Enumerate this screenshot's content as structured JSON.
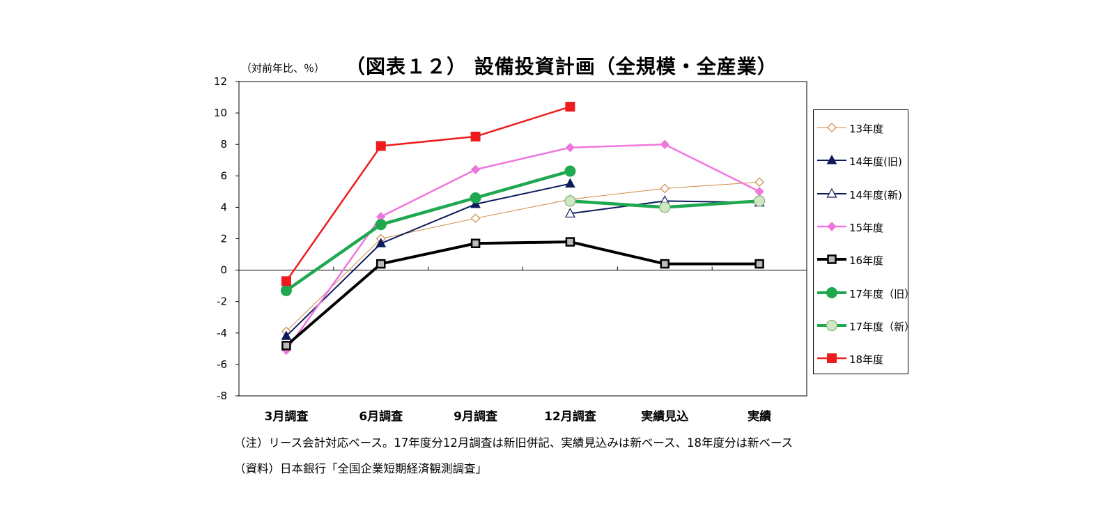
{
  "header": {
    "unit": "（対前年比、％）",
    "title": "（図表１２） 設備投資計画（全規模・全産業）"
  },
  "notes": {
    "note1": "（注）リース会計対応ベース。17年度分12月調査は新旧併記、実績見込みは新ベース、18年度分は新ベース",
    "note2": "（資料）日本銀行「全国企業短期経済観測調査」"
  },
  "chart_data": {
    "type": "line",
    "title": "（図表１２） 設備投資計画（全規模・全産業）",
    "ylabel": "（対前年比、％）",
    "xlabel": "",
    "categories": [
      "3月調査",
      "6月調査",
      "9月調査",
      "12月調査",
      "実績見込",
      "実績"
    ],
    "y_ticks": [
      "12",
      "10",
      "8",
      "6",
      "4",
      "2",
      "0",
      "-2",
      "-4",
      "-6",
      "-8"
    ],
    "ylim": [
      -8,
      12
    ],
    "grid": false,
    "legend_position": "right",
    "series": [
      {
        "name": "13年度",
        "values": [
          -3.9,
          2.0,
          3.3,
          4.5,
          5.2,
          5.6
        ],
        "color": "#cc8844",
        "marker": "diamond-open",
        "width": 1
      },
      {
        "name": "14年度(旧)",
        "values": [
          -4.2,
          1.7,
          4.2,
          5.5,
          null,
          null
        ],
        "color": "#0d1a5c",
        "marker": "triangle-filled",
        "width": 2
      },
      {
        "name": "14年度(新)",
        "values": [
          null,
          null,
          null,
          3.6,
          4.4,
          4.3
        ],
        "color": "#0d1a5c",
        "marker": "triangle-open",
        "width": 2
      },
      {
        "name": "15年度",
        "values": [
          -5.1,
          3.4,
          6.4,
          7.8,
          8.0,
          5.0
        ],
        "color": "#ee77dd",
        "marker": "diamond-filled",
        "width": 2.5
      },
      {
        "name": "16年度",
        "values": [
          -4.8,
          0.4,
          1.7,
          1.8,
          0.4,
          0.4
        ],
        "color": "#000000",
        "marker": "square-gray",
        "width": 4
      },
      {
        "name": "17年度（旧）",
        "values": [
          -1.3,
          2.9,
          4.6,
          6.3,
          null,
          null
        ],
        "color": "#1fa84f",
        "marker": "circle-filled",
        "width": 4.5
      },
      {
        "name": "17年度（新）",
        "values": [
          null,
          null,
          null,
          4.4,
          4.0,
          4.4
        ],
        "color": "#1fa84f",
        "marker": "circle-light",
        "width": 4.5
      },
      {
        "name": "18年度",
        "values": [
          -0.7,
          7.9,
          8.5,
          10.4,
          null,
          null
        ],
        "color": "#ee1c1c",
        "marker": "square-filled",
        "width": 2.5
      }
    ]
  }
}
